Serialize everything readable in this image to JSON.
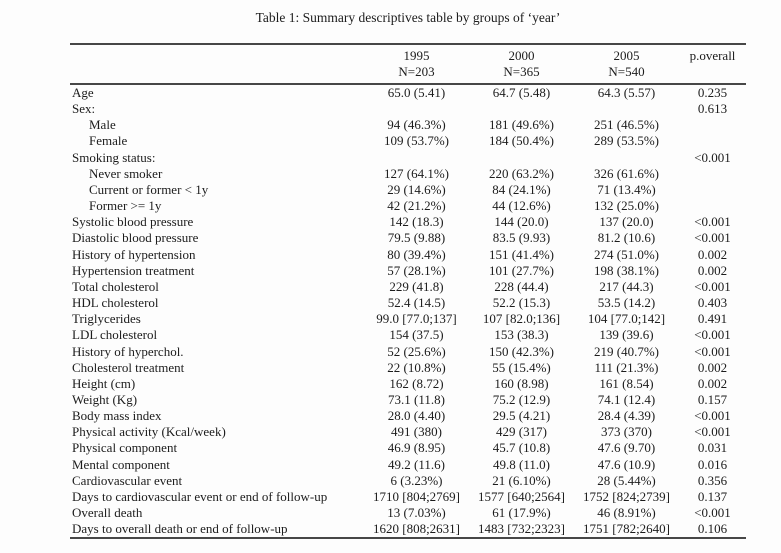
{
  "caption": "Table 1: Summary descriptives table by groups of ‘year’",
  "colors": {
    "text": "#1c1c1c",
    "rule": "#474747",
    "background": "#fdfdfd"
  },
  "table": {
    "group_columns": [
      {
        "year": "1995",
        "n": "N=203"
      },
      {
        "year": "2000",
        "n": "N=365"
      },
      {
        "year": "2005",
        "n": "N=540"
      }
    ],
    "p_column_label": "p.overall",
    "rows": [
      {
        "label": "Age",
        "indent": false,
        "values": [
          "65.0 (5.41)",
          "64.7 (5.48)",
          "64.3 (5.57)"
        ],
        "p": "0.235"
      },
      {
        "label": "Sex:",
        "indent": false,
        "values": [
          "",
          "",
          ""
        ],
        "p": "0.613"
      },
      {
        "label": "Male",
        "indent": true,
        "values": [
          "94 (46.3%)",
          "181 (49.6%)",
          "251 (46.5%)"
        ],
        "p": ""
      },
      {
        "label": "Female",
        "indent": true,
        "values": [
          "109 (53.7%)",
          "184 (50.4%)",
          "289 (53.5%)"
        ],
        "p": ""
      },
      {
        "label": "Smoking status:",
        "indent": false,
        "values": [
          "",
          "",
          ""
        ],
        "p": "<0.001"
      },
      {
        "label": "Never smoker",
        "indent": true,
        "values": [
          "127 (64.1%)",
          "220 (63.2%)",
          "326 (61.6%)"
        ],
        "p": ""
      },
      {
        "label": "Current or former < 1y",
        "indent": true,
        "values": [
          "29 (14.6%)",
          "84 (24.1%)",
          "71 (13.4%)"
        ],
        "p": ""
      },
      {
        "label": "Former >= 1y",
        "indent": true,
        "values": [
          "42 (21.2%)",
          "44 (12.6%)",
          "132 (25.0%)"
        ],
        "p": ""
      },
      {
        "label": "Systolic blood pressure",
        "indent": false,
        "values": [
          "142 (18.3)",
          "144 (20.0)",
          "137 (20.0)"
        ],
        "p": "<0.001"
      },
      {
        "label": "Diastolic blood pressure",
        "indent": false,
        "values": [
          "79.5 (9.88)",
          "83.5 (9.93)",
          "81.2 (10.6)"
        ],
        "p": "<0.001"
      },
      {
        "label": "History of hypertension",
        "indent": false,
        "values": [
          "80 (39.4%)",
          "151 (41.4%)",
          "274 (51.0%)"
        ],
        "p": "0.002"
      },
      {
        "label": "Hypertension treatment",
        "indent": false,
        "values": [
          "57 (28.1%)",
          "101 (27.7%)",
          "198 (38.1%)"
        ],
        "p": "0.002"
      },
      {
        "label": "Total cholesterol",
        "indent": false,
        "values": [
          "229 (41.8)",
          "228 (44.4)",
          "217 (44.3)"
        ],
        "p": "<0.001"
      },
      {
        "label": "HDL cholesterol",
        "indent": false,
        "values": [
          "52.4 (14.5)",
          "52.2 (15.3)",
          "53.5 (14.2)"
        ],
        "p": "0.403"
      },
      {
        "label": "Triglycerides",
        "indent": false,
        "values": [
          "99.0 [77.0;137]",
          "107 [82.0;136]",
          "104 [77.0;142]"
        ],
        "p": "0.491"
      },
      {
        "label": "LDL cholesterol",
        "indent": false,
        "values": [
          "154 (37.5)",
          "153 (38.3)",
          "139 (39.6)"
        ],
        "p": "<0.001"
      },
      {
        "label": "History of hyperchol.",
        "indent": false,
        "values": [
          "52 (25.6%)",
          "150 (42.3%)",
          "219 (40.7%)"
        ],
        "p": "<0.001"
      },
      {
        "label": "Cholesterol treatment",
        "indent": false,
        "values": [
          "22 (10.8%)",
          "55 (15.4%)",
          "111 (21.3%)"
        ],
        "p": "0.002"
      },
      {
        "label": "Height (cm)",
        "indent": false,
        "values": [
          "162 (8.72)",
          "160 (8.98)",
          "161 (8.54)"
        ],
        "p": "0.002"
      },
      {
        "label": "Weight (Kg)",
        "indent": false,
        "values": [
          "73.1 (11.8)",
          "75.2 (12.9)",
          "74.1 (12.4)"
        ],
        "p": "0.157"
      },
      {
        "label": "Body mass index",
        "indent": false,
        "values": [
          "28.0 (4.40)",
          "29.5 (4.21)",
          "28.4 (4.39)"
        ],
        "p": "<0.001"
      },
      {
        "label": "Physical activity (Kcal/week)",
        "indent": false,
        "values": [
          "491 (380)",
          "429 (317)",
          "373 (370)"
        ],
        "p": "<0.001"
      },
      {
        "label": "Physical component",
        "indent": false,
        "values": [
          "46.9 (8.95)",
          "45.7 (10.8)",
          "47.6 (9.70)"
        ],
        "p": "0.031"
      },
      {
        "label": "Mental component",
        "indent": false,
        "values": [
          "49.2 (11.6)",
          "49.8 (11.0)",
          "47.6 (10.9)"
        ],
        "p": "0.016"
      },
      {
        "label": "Cardiovascular event",
        "indent": false,
        "values": [
          "6 (3.23%)",
          "21 (6.10%)",
          "28 (5.44%)"
        ],
        "p": "0.356"
      },
      {
        "label": "Days to cardiovascular event or end of follow-up",
        "indent": false,
        "values": [
          "1710 [804;2769]",
          "1577 [640;2564]",
          "1752 [824;2739]"
        ],
        "p": "0.137"
      },
      {
        "label": "Overall death",
        "indent": false,
        "values": [
          "13 (7.03%)",
          "61 (17.9%)",
          "46 (8.91%)"
        ],
        "p": "<0.001"
      },
      {
        "label": "Days to overall death or end of follow-up",
        "indent": false,
        "values": [
          "1620 [808;2631]",
          "1483 [732;2323]",
          "1751 [782;2640]"
        ],
        "p": "0.106"
      }
    ]
  }
}
